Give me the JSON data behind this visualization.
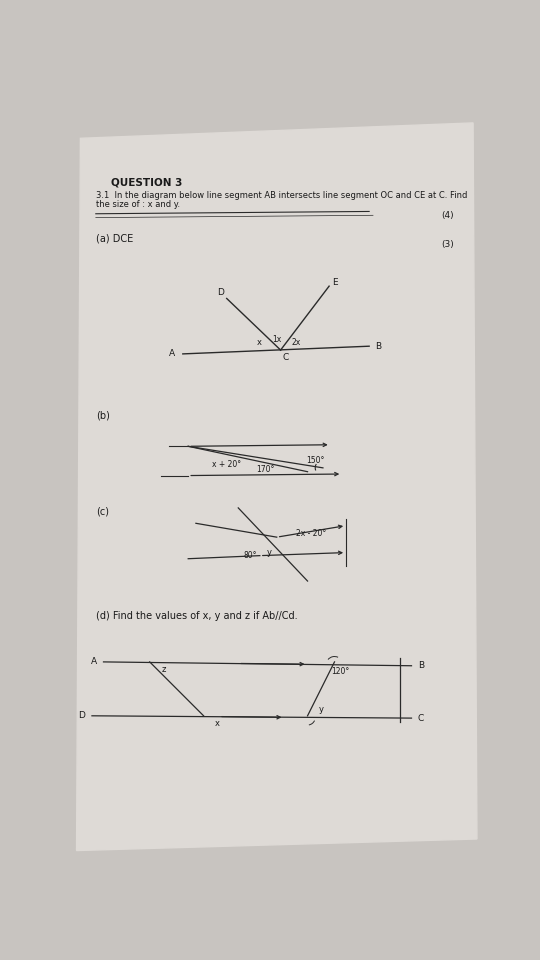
{
  "bg_color": "#c8c4c0",
  "paper_color": "#dedad6",
  "title": "QUESTION 3",
  "subtitle": "3.1  In the diagram below line segment AB intersects line segment OC and CE at C. Find",
  "subtitle2": "the size of : x and y.",
  "marks_a": "(4)",
  "marks_b": "(3)",
  "label_a": "(a) DCE",
  "label_b": "(b)",
  "label_c": "(c)",
  "label_d": "(d) Find the values of x, y and z if Ab//Cd.",
  "text_color": "#1a1a1a",
  "line_color": "#2a2a2a"
}
